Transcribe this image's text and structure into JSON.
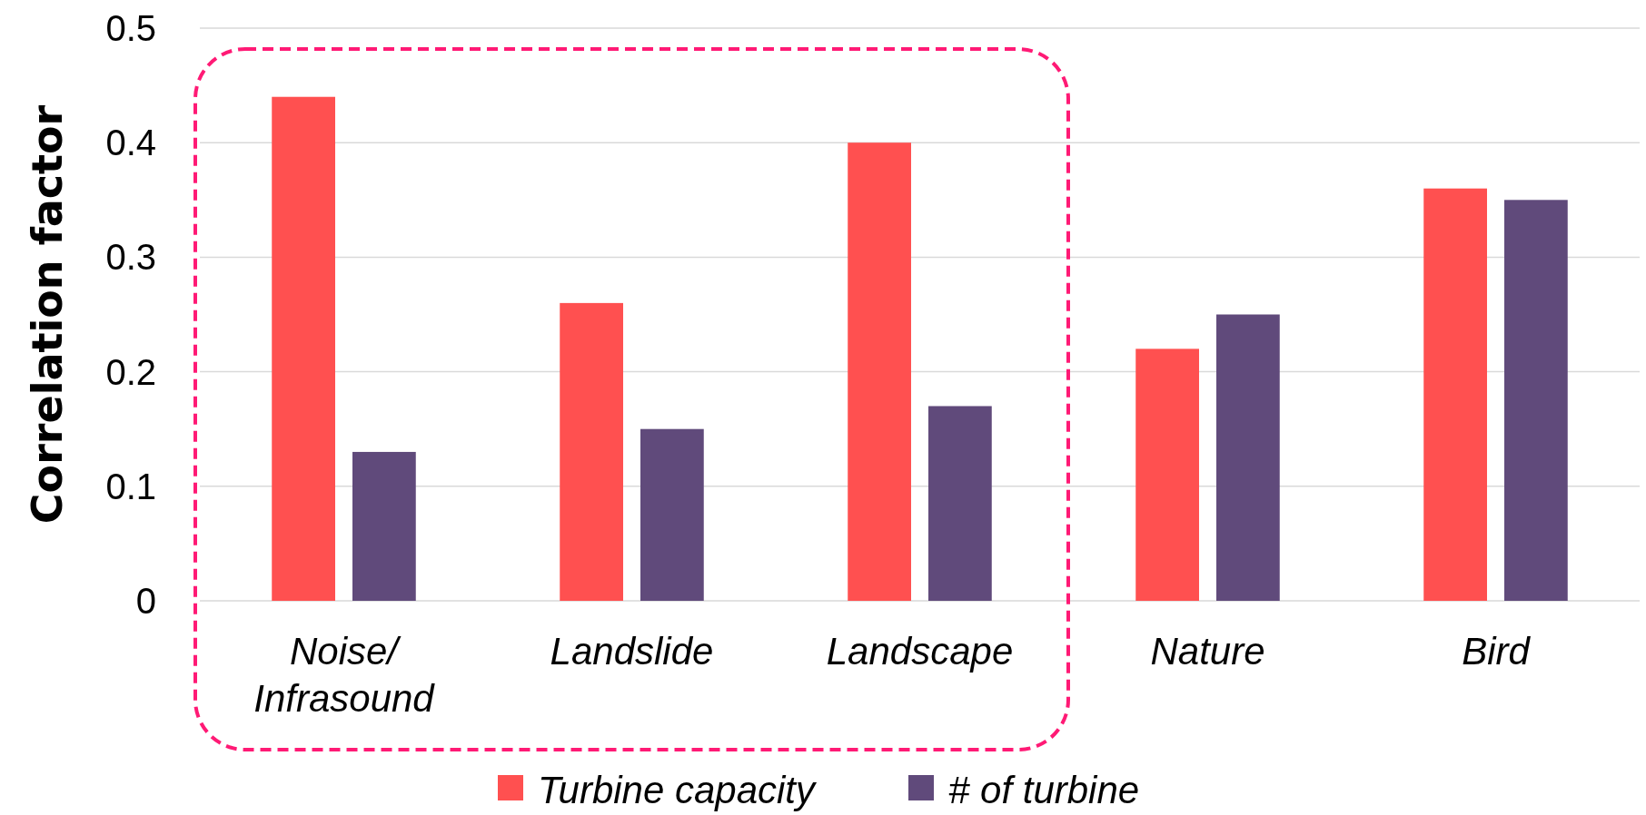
{
  "chart_data": {
    "type": "bar",
    "ylabel": "Correlation factor",
    "categories": [
      "Noise/Infrasound",
      "Landslide",
      "Landscape",
      "Nature",
      "Bird"
    ],
    "series": [
      {
        "name": "Turbine capacity",
        "color": "#ff5050",
        "values": [
          0.44,
          0.26,
          0.4,
          0.22,
          0.36
        ]
      },
      {
        "name": "# of turbine",
        "color": "#604a7b",
        "values": [
          0.13,
          0.15,
          0.17,
          0.25,
          0.35
        ]
      }
    ],
    "ylim": [
      0,
      0.5
    ],
    "yticks": [
      {
        "value": 0,
        "label": "0"
      },
      0.1,
      0.2,
      0.3,
      0.4,
      0.5
    ],
    "grid": "y",
    "legend": "bottom"
  }
}
